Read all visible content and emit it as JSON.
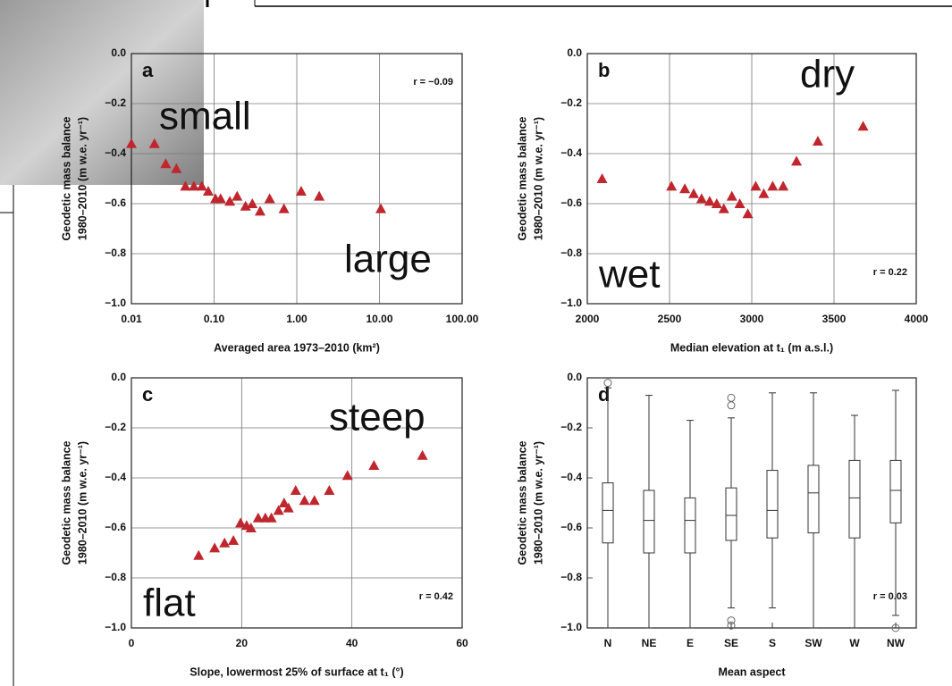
{
  "chart_data": [
    {
      "type": "scatter",
      "panel": "a",
      "stat": "r = −0.09",
      "annotations": [
        "small",
        "large"
      ],
      "color": "#c0262d",
      "log_x": true,
      "grid": true,
      "ylabel": [
        "Geodetic mass balance",
        "1980–2010 (m w.e. yr⁻¹)"
      ],
      "xlabel": "Averaged area 1973–2010 (km²)",
      "xlim": [
        0.01,
        100
      ],
      "xticks": [
        0.01,
        {
          "value": 0.1,
          "label": "0.10"
        },
        {
          "value": 1,
          "label": "1.00"
        },
        {
          "value": 10,
          "label": "10.00"
        },
        {
          "value": 100,
          "label": "100.00"
        }
      ],
      "ylim": [
        -1,
        0
      ],
      "yticks": [
        {
          "value": -1,
          "label": "−1.0"
        },
        {
          "value": -0.8,
          "label": "−0.8"
        },
        {
          "value": -0.6,
          "label": "−0.6"
        },
        {
          "value": -0.4,
          "label": "−0.4"
        },
        {
          "value": -0.2,
          "label": "−0.2"
        },
        {
          "value": 0,
          "label": "0.0"
        }
      ],
      "x": [
        0.01,
        0.019,
        0.026,
        0.035,
        0.045,
        0.057,
        0.071,
        0.085,
        0.104,
        0.12,
        0.155,
        0.19,
        0.24,
        0.29,
        0.36,
        0.47,
        0.7,
        1.13,
        1.87,
        10.4
      ],
      "values": [
        -0.36,
        -0.36,
        -0.44,
        -0.46,
        -0.53,
        -0.53,
        -0.53,
        -0.55,
        -0.58,
        -0.58,
        -0.59,
        -0.57,
        -0.61,
        -0.6,
        -0.63,
        -0.58,
        -0.62,
        -0.55,
        -0.57,
        -0.62
      ]
    },
    {
      "type": "scatter",
      "panel": "b",
      "stat": "r = 0.22",
      "annotations": [
        "dry",
        "wet"
      ],
      "color": "#c0262d",
      "grid": true,
      "ylabel": [
        "Geodetic mass balance",
        "1980–2010 (m w.e. yr⁻¹)"
      ],
      "xlabel": "Median elevation at t₁ (m a.s.l.)",
      "xlim": [
        2000,
        4000
      ],
      "xticks": [
        2000,
        2500,
        3000,
        3500,
        4000
      ],
      "ylim": [
        -1,
        0
      ],
      "yticks": [
        {
          "value": -1,
          "label": "−1.0"
        },
        {
          "value": -0.8,
          "label": "−0.8"
        },
        {
          "value": -0.6,
          "label": "−0.6"
        },
        {
          "value": -0.4,
          "label": "−0.4"
        },
        {
          "value": -0.2,
          "label": "−0.2"
        },
        {
          "value": 0,
          "label": "0.0"
        }
      ],
      "x": [
        2090,
        2512,
        2593,
        2647,
        2695,
        2744,
        2787,
        2830,
        2879,
        2927,
        2976,
        3024,
        3073,
        3127,
        3191,
        3272,
        3402,
        3677
      ],
      "values": [
        -0.5,
        -0.53,
        -0.54,
        -0.56,
        -0.58,
        -0.59,
        -0.6,
        -0.62,
        -0.57,
        -0.6,
        -0.64,
        -0.53,
        -0.56,
        -0.53,
        -0.53,
        -0.43,
        -0.35,
        -0.29
      ]
    },
    {
      "type": "scatter",
      "panel": "c",
      "stat": "r = 0.42",
      "annotations": [
        "steep",
        "flat"
      ],
      "color": "#c0262d",
      "grid": true,
      "ylabel": [
        "Geodetic mass balance",
        "1980–2010 (m w.e. yr⁻¹)"
      ],
      "xlabel": "Slope, lowermost 25% of surface at t₁ (°)",
      "xlim": [
        0,
        60
      ],
      "xticks": [
        0,
        20,
        40,
        60
      ],
      "ylim": [
        -1,
        0
      ],
      "yticks": [
        {
          "value": -1,
          "label": "−1.0"
        },
        {
          "value": -0.8,
          "label": "−0.8"
        },
        {
          "value": -0.6,
          "label": "−0.6"
        },
        {
          "value": -0.4,
          "label": "−0.4"
        },
        {
          "value": -0.2,
          "label": "−0.2"
        },
        {
          "value": 0,
          "label": "0.0"
        }
      ],
      "x": [
        12.2,
        15.1,
        16.9,
        18.5,
        19.8,
        20.9,
        21.7,
        23.0,
        24.3,
        25.4,
        26.7,
        27.7,
        28.5,
        29.8,
        31.4,
        33.2,
        35.9,
        39.2,
        44.0,
        52.8
      ],
      "values": [
        -0.71,
        -0.68,
        -0.66,
        -0.65,
        -0.58,
        -0.59,
        -0.6,
        -0.56,
        -0.56,
        -0.56,
        -0.53,
        -0.5,
        -0.52,
        -0.45,
        -0.49,
        -0.49,
        -0.45,
        -0.39,
        -0.35,
        -0.31
      ]
    },
    {
      "type": "box",
      "panel": "d",
      "stat": "r = 0.03",
      "annotations": [],
      "grid": false,
      "ylabel": [
        "Geodetic mass balance",
        "1980–2010 (m w.e. yr⁻¹)"
      ],
      "xlabel": "Mean aspect",
      "ylim": [
        -1,
        0
      ],
      "yticks": [
        {
          "value": -1,
          "label": "−1.0"
        },
        {
          "value": -0.8,
          "label": "−0.8"
        },
        {
          "value": -0.6,
          "label": "−0.6"
        },
        {
          "value": -0.4,
          "label": "−0.4"
        },
        {
          "value": -0.2,
          "label": "−0.2"
        },
        {
          "value": 0,
          "label": "0.0"
        }
      ],
      "categories": [
        "N",
        "NE",
        "E",
        "SE",
        "S",
        "SW",
        "W",
        "NW"
      ],
      "values": [
        [
          -1,
          -0.66,
          -0.53,
          -0.42,
          -0.04
        ],
        [
          -1,
          -0.7,
          -0.57,
          -0.45,
          -0.07
        ],
        [
          -1,
          -0.7,
          -0.57,
          -0.48,
          -0.17
        ],
        [
          -0.92,
          -0.65,
          -0.55,
          -0.44,
          -0.16
        ],
        [
          -0.92,
          -0.64,
          -0.53,
          -0.37,
          -0.06
        ],
        [
          -1,
          -0.62,
          -0.46,
          -0.35,
          -0.06
        ],
        [
          -1,
          -0.64,
          -0.48,
          -0.33,
          -0.15
        ],
        [
          -0.95,
          -0.58,
          -0.45,
          -0.33,
          -0.05
        ]
      ],
      "outliers": [
        [
          -0.02
        ],
        [],
        [],
        [
          -0.08,
          -0.11,
          -0.97,
          -0.99
        ],
        [],
        [],
        [],
        [
          -1.0
        ]
      ]
    }
  ]
}
